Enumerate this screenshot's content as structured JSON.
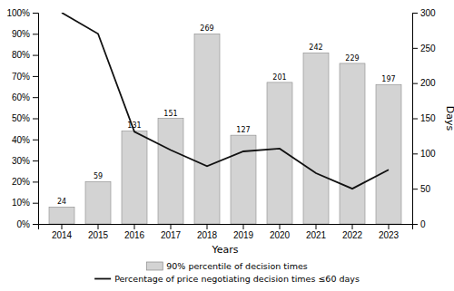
{
  "chart_data": {
    "type": "bar",
    "x_label": "Years",
    "y2_label": "Days",
    "categories": [
      "2014",
      "2015",
      "2016",
      "2017",
      "2018",
      "2019",
      "2020",
      "2021",
      "2022",
      "2023"
    ],
    "ylim": [
      0,
      1.0
    ],
    "yticks": [
      {
        "value": 0.0,
        "label": "0%"
      },
      {
        "value": 0.1,
        "label": "10%"
      },
      {
        "value": 0.2,
        "label": "20%"
      },
      {
        "value": 0.3,
        "label": "30%"
      },
      {
        "value": 0.4,
        "label": "40%"
      },
      {
        "value": 0.5,
        "label": "50%"
      },
      {
        "value": 0.6,
        "label": "60%"
      },
      {
        "value": 0.7,
        "label": "70%"
      },
      {
        "value": 0.8,
        "label": "80%"
      },
      {
        "value": 0.9,
        "label": "90%"
      },
      {
        "value": 1.0,
        "label": "100%"
      }
    ],
    "y2lim": [
      0,
      300
    ],
    "y2ticks": [
      0,
      50,
      100,
      150,
      200,
      250,
      300
    ],
    "legend": "bottom",
    "series": [
      {
        "name": "90% percentile of decision times",
        "type": "bar",
        "color": "#d3d3d3",
        "values": [
          0.08,
          0.2,
          0.44,
          0.5,
          0.9,
          0.42,
          0.67,
          0.81,
          0.76,
          0.66
        ],
        "raw_values": [
          24,
          59,
          131,
          151,
          269,
          127,
          201,
          242,
          229,
          197
        ]
      },
      {
        "name": "Percentage of price negotiating decision times ≤60 days",
        "type": "line",
        "axis": "y2",
        "color": "#111111",
        "values": [
          300,
          270,
          131,
          105,
          82,
          103,
          107,
          72,
          50,
          77
        ]
      }
    ]
  }
}
